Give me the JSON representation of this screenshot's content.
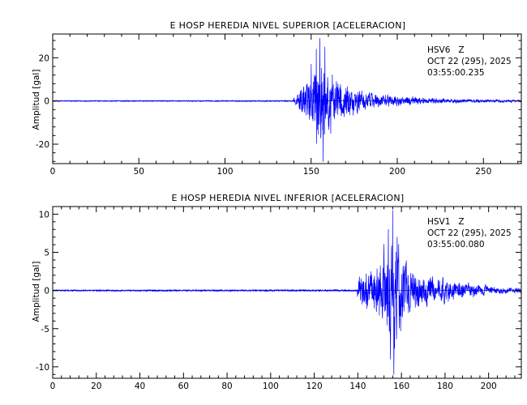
{
  "chart_data": [
    {
      "type": "line",
      "title": "E HOSP HEREDIA NIVEL SUPERIOR [ACELERACION]",
      "xlabel": "",
      "ylabel": "Amplitud [gal]",
      "xlim": [
        0,
        272
      ],
      "ylim": [
        -29,
        31
      ],
      "x_ticks": [
        0,
        50,
        100,
        150,
        200,
        250
      ],
      "y_ticks": [
        -20,
        0,
        20
      ],
      "grid": false,
      "annotations": [
        "HSV6   Z",
        "OCT 22 (295), 2025",
        "03:55:00.235"
      ],
      "series": [
        {
          "color": "#0000ff",
          "onset_time": 140,
          "envelope": [
            [
              0,
              0.25
            ],
            [
              139.5,
              0.3
            ],
            [
              140,
              2
            ],
            [
              142,
              5
            ],
            [
              145,
              8
            ],
            [
              148,
              11
            ],
            [
              150,
              17
            ],
            [
              152,
              22
            ],
            [
              154,
              27
            ],
            [
              156,
              28
            ],
            [
              158,
              22
            ],
            [
              160,
              18
            ],
            [
              163,
              13
            ],
            [
              166,
              11
            ],
            [
              170,
              9
            ],
            [
              174,
              8
            ],
            [
              178,
              6
            ],
            [
              182,
              5
            ],
            [
              186,
              4
            ],
            [
              190,
              3.5
            ],
            [
              195,
              3
            ],
            [
              200,
              2.5
            ],
            [
              205,
              2.2
            ],
            [
              210,
              2
            ],
            [
              215,
              1.6
            ],
            [
              220,
              1.4
            ],
            [
              230,
              1.2
            ],
            [
              240,
              1
            ],
            [
              250,
              0.9
            ],
            [
              260,
              0.8
            ],
            [
              272,
              0.7
            ]
          ],
          "peaks": [
            [
              155,
              29
            ],
            [
              157,
              -28
            ],
            [
              153,
              24
            ],
            [
              158,
              25
            ],
            [
              150,
              17
            ]
          ]
        }
      ]
    },
    {
      "type": "line",
      "title": "E HOSP HEREDIA NIVEL INFERIOR [ACELERACION]",
      "xlabel": "",
      "ylabel": "Amplitud [gal]",
      "xlim": [
        0,
        215
      ],
      "ylim": [
        -11.5,
        11
      ],
      "x_ticks": [
        0,
        20,
        40,
        60,
        80,
        100,
        120,
        140,
        160,
        180,
        200
      ],
      "y_ticks": [
        -10,
        -5,
        0,
        5,
        10
      ],
      "grid": false,
      "annotations": [
        "HSV1   Z",
        "OCT 22 (295), 2025",
        "03:55:00.080"
      ],
      "series": [
        {
          "color": "#0000ff",
          "onset_time": 140,
          "envelope": [
            [
              0,
              0.1
            ],
            [
              139.5,
              0.12
            ],
            [
              140,
              1.5
            ],
            [
              142,
              2.5
            ],
            [
              145,
              3
            ],
            [
              148,
              3.5
            ],
            [
              150,
              4.5
            ],
            [
              152,
              6
            ],
            [
              154,
              7.5
            ],
            [
              156,
              9
            ],
            [
              158,
              6.5
            ],
            [
              160,
              5
            ],
            [
              163,
              3.5
            ],
            [
              166,
              3
            ],
            [
              170,
              2.5
            ],
            [
              174,
              2
            ],
            [
              178,
              1.8
            ],
            [
              182,
              1.5
            ],
            [
              186,
              1.2
            ],
            [
              190,
              1
            ],
            [
              195,
              0.8
            ],
            [
              200,
              0.6
            ],
            [
              205,
              0.5
            ],
            [
              210,
              0.4
            ],
            [
              215,
              0.4
            ]
          ],
          "peaks": [
            [
              156,
              10.5
            ],
            [
              156.5,
              -11
            ],
            [
              154,
              8
            ],
            [
              155,
              -9
            ],
            [
              158,
              7
            ]
          ]
        }
      ]
    }
  ]
}
